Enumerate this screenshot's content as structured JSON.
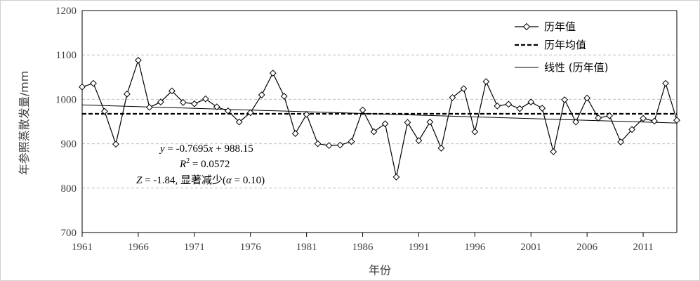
{
  "chart_data": {
    "type": "line",
    "xlabel": "年份",
    "ylabel": "年参照蒸散发量/mm",
    "xlim": [
      1961,
      2014
    ],
    "ylim": [
      700,
      1200
    ],
    "x_ticks": [
      1961,
      1966,
      1971,
      1976,
      1981,
      1986,
      1991,
      1996,
      2001,
      2006,
      2011
    ],
    "y_ticks": [
      700,
      800,
      900,
      1000,
      1100,
      1200
    ],
    "grid": "horizontal dashed",
    "legend_position": "top-right",
    "x": [
      1961,
      1962,
      1963,
      1964,
      1965,
      1966,
      1967,
      1968,
      1969,
      1970,
      1971,
      1972,
      1973,
      1974,
      1975,
      1976,
      1977,
      1978,
      1979,
      1980,
      1981,
      1982,
      1983,
      1984,
      1985,
      1986,
      1987,
      1988,
      1989,
      1990,
      1991,
      1992,
      1993,
      1994,
      1995,
      1996,
      1997,
      1998,
      1999,
      2000,
      2001,
      2002,
      2003,
      2004,
      2005,
      2006,
      2007,
      2008,
      2009,
      2010,
      2011,
      2012,
      2013,
      2014
    ],
    "series": [
      {
        "name": "历年值",
        "style": "line-diamond",
        "color": "#000000",
        "values": [
          1028,
          1036,
          973,
          899,
          1012,
          1088,
          982,
          994,
          1019,
          993,
          990,
          1001,
          983,
          974,
          949,
          970,
          1010,
          1059,
          1007,
          923,
          966,
          900,
          896,
          897,
          905,
          976,
          927,
          945,
          825,
          948,
          907,
          949,
          890,
          1004,
          1024,
          927,
          1040,
          985,
          989,
          979,
          994,
          980,
          882,
          999,
          949,
          1003,
          958,
          963,
          904,
          932,
          957,
          951,
          1036,
          953
        ]
      },
      {
        "name": "历年均值",
        "style": "dashed",
        "color": "#000000",
        "values_constant": 967.4
      },
      {
        "name": "线性 (历年值)",
        "style": "solid-thin",
        "color": "#000000",
        "slope": -0.7695,
        "intercept": 988.15,
        "x_origin": 1960
      }
    ],
    "annotations": {
      "equation_prefix": "y",
      "equation_body": " = -0.7695",
      "equation_var": "x",
      "equation_tail": " + 988.15",
      "r2_prefix": "R",
      "r2_sup": "2",
      "r2_tail": " = 0.0572",
      "z_prefix": "Z",
      "z_body": " = -1.84, 显著减少(",
      "z_alpha": "α",
      "z_tail": " = 0.10)"
    }
  }
}
